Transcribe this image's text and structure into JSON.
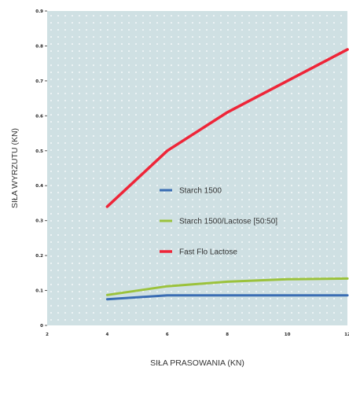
{
  "chart_data": {
    "type": "line",
    "title": "",
    "xlabel": "SIŁA PRASOWANIA (KN)",
    "ylabel": "SIŁA WYRZUTU (KN)",
    "x_ticks": [
      "2",
      "4",
      "6",
      "8",
      "10",
      "12"
    ],
    "y_ticks": [
      "0",
      "0.1",
      "0.2",
      "0.3",
      "0.4",
      "0.5",
      "0.6",
      "0.7",
      "0.8",
      "0.9"
    ],
    "xlim": [
      2,
      12
    ],
    "ylim": [
      0,
      0.9
    ],
    "x": [
      4,
      6,
      8,
      10,
      12
    ],
    "series": [
      {
        "name": "Starch 1500",
        "color": "#3a6db3",
        "values": [
          0.075,
          0.086,
          0.086,
          0.086,
          0.086
        ]
      },
      {
        "name": "Starch 1500/Lactose [50:50]",
        "color": "#9bc23c",
        "values": [
          0.087,
          0.112,
          0.125,
          0.132,
          0.134
        ]
      },
      {
        "name": "Fast Flo Lactose",
        "color": "#ee2538",
        "values": [
          0.34,
          0.5,
          0.61,
          0.7,
          0.79
        ]
      }
    ],
    "grid": false,
    "background": "#cfe0e3",
    "legend": "center"
  }
}
